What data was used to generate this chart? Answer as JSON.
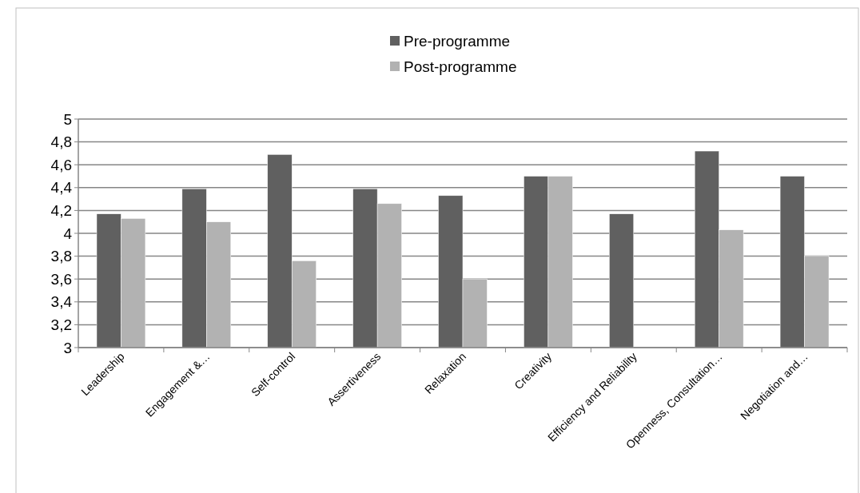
{
  "chart_data": {
    "type": "bar",
    "categories": [
      "Leadership",
      "Engagement &…",
      "Self-control",
      "Assertiveness",
      "Relaxation",
      "Creativity",
      "Efficiency and Reliability",
      "Openness, Consultation…",
      "Negotiation and…"
    ],
    "series": [
      {
        "name": "Pre-programme",
        "color": "#606060",
        "values": [
          4.17,
          4.39,
          4.69,
          4.39,
          4.33,
          4.5,
          4.17,
          4.72,
          4.5
        ]
      },
      {
        "name": "Post-programme",
        "color": "#b2b2b2",
        "values": [
          4.13,
          4.1,
          3.76,
          4.26,
          3.6,
          4.5,
          null,
          4.03,
          3.8
        ]
      }
    ],
    "ylim": [
      3,
      5
    ],
    "yticks": [
      3,
      {
        "value": 3.2,
        "label": "3,2"
      },
      {
        "value": 3.4,
        "label": "3,4"
      },
      {
        "value": 3.6,
        "label": "3,6"
      },
      {
        "value": 3.8,
        "label": "3,8"
      },
      4,
      {
        "value": 4.2,
        "label": "4,2"
      },
      {
        "value": 4.4,
        "label": "4,4"
      },
      {
        "value": 4.6,
        "label": "4,6"
      },
      {
        "value": 4.8,
        "label": "4,8"
      },
      5
    ],
    "grid": "y",
    "legend": "top"
  }
}
